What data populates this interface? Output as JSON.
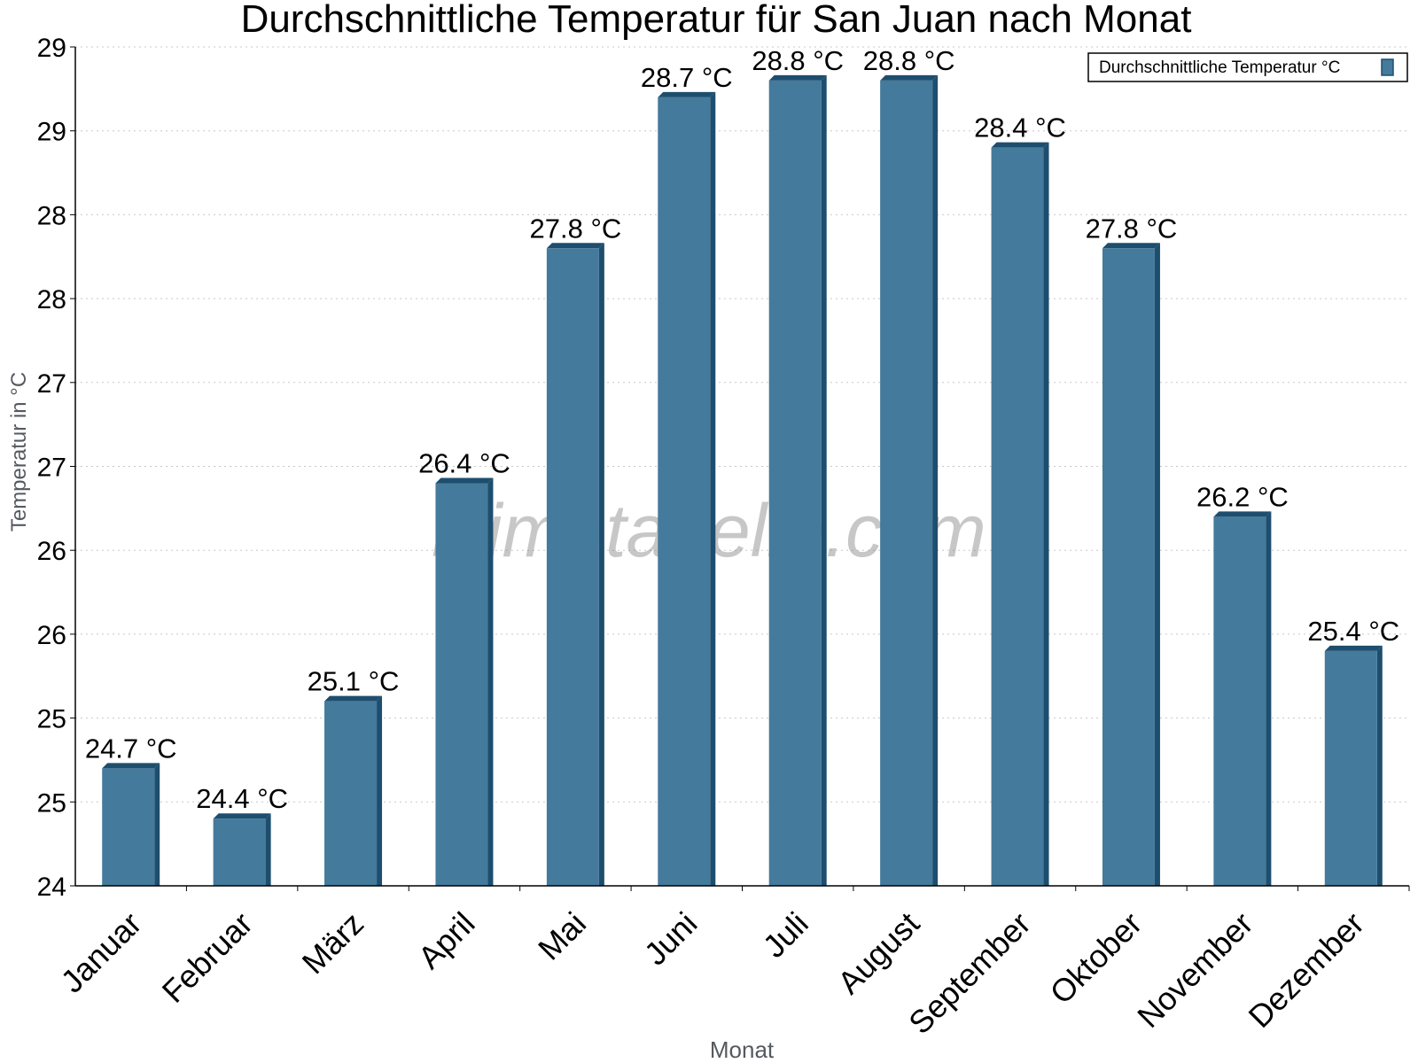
{
  "chart_data": {
    "type": "bar",
    "title": "Durchschnittliche Temperatur für San Juan nach Monat",
    "xlabel": "Monat",
    "ylabel": "Temperatur in °C",
    "ylim": [
      24,
      29
    ],
    "yticks": [
      "24",
      "25",
      "25",
      "26",
      "26",
      "27",
      "27",
      "28",
      "28",
      "29",
      "29"
    ],
    "grid": true,
    "legend_position": "top-right",
    "categories": [
      "Januar",
      "Februar",
      "März",
      "April",
      "Mai",
      "Juni",
      "Juli",
      "August",
      "September",
      "Oktober",
      "November",
      "Dezember"
    ],
    "series": [
      {
        "name": "Durchschnittliche Temperatur °C",
        "values": [
          24.7,
          24.4,
          25.1,
          26.4,
          27.8,
          28.7,
          28.8,
          28.8,
          28.4,
          27.8,
          26.2,
          25.4
        ],
        "labels": [
          "24.7 °C",
          "24.4 °C",
          "25.1 °C",
          "26.4 °C",
          "27.8 °C",
          "28.7 °C",
          "28.8 °C",
          "28.8 °C",
          "28.4 °C",
          "27.8 °C",
          "26.2 °C",
          "25.4 °C"
        ],
        "color": "#447a9c",
        "side_color": "#1e4e6e"
      }
    ]
  },
  "watermark": "klimatabelle.com"
}
